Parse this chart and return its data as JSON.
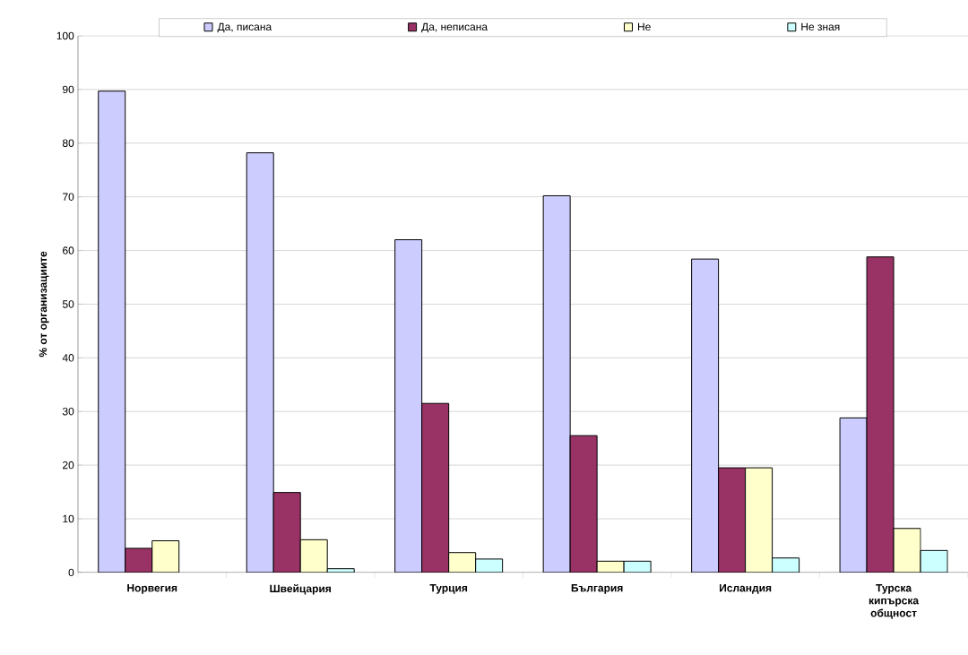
{
  "chart_data": {
    "type": "bar",
    "ylabel": "% от организациите",
    "categories": [
      "Норвегия",
      "Швейцария",
      "Турция",
      "България",
      "Исландия",
      "Турска кипърска общност"
    ],
    "series": [
      {
        "name": "Да, писана",
        "color": "#ccccff",
        "values": [
          89.7,
          78.2,
          62.0,
          70.2,
          58.4,
          28.8
        ]
      },
      {
        "name": "Да, неписана",
        "color": "#993366",
        "values": [
          4.5,
          14.9,
          31.5,
          25.5,
          19.5,
          58.8
        ]
      },
      {
        "name": "Не",
        "color": "#ffffcc",
        "values": [
          5.9,
          6.1,
          3.7,
          2.1,
          19.5,
          8.2
        ]
      },
      {
        "name": "Не зная",
        "color": "#ccffff",
        "values": [
          null,
          0.7,
          2.5,
          2.1,
          2.7,
          4.1
        ]
      }
    ],
    "ylim": [
      0,
      100
    ],
    "yticks": [
      0,
      10,
      20,
      30,
      40,
      50,
      60,
      70,
      80,
      90,
      100
    ],
    "grid": "y",
    "legend": "top"
  }
}
